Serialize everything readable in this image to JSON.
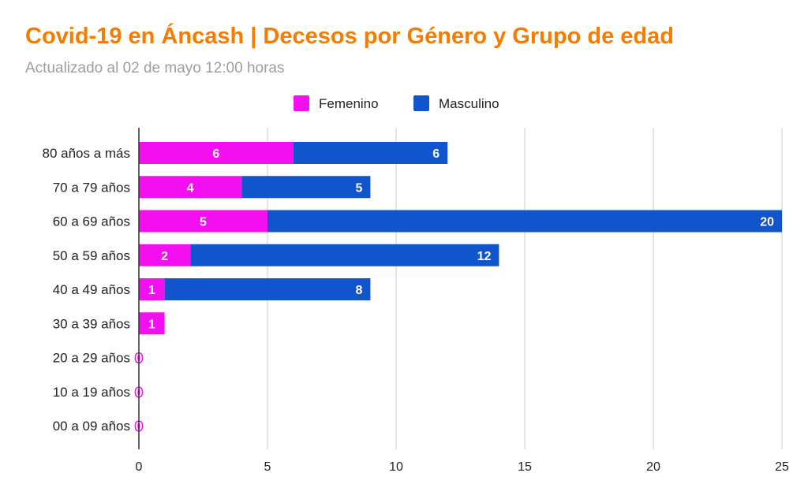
{
  "chart_data": {
    "type": "bar",
    "orientation": "horizontal",
    "stacked": true,
    "title": "Covid-19 en Áncash | Decesos por Género y Grupo de edad",
    "subtitle": "Actualizado al 02 de mayo 12:00 horas",
    "xlabel": "",
    "ylabel": "",
    "xlim": [
      0,
      25
    ],
    "xticks": [
      0,
      5,
      10,
      15,
      20,
      25
    ],
    "grid": true,
    "legend_position": "top",
    "categories": [
      "80 años a más",
      "70 a 79 años",
      "60 a 69 años",
      "50 a 59 años",
      "40 a 49 años",
      "30 a 39 años",
      "20 a 29 años",
      "10 a 19 años",
      "00 a 09 años"
    ],
    "series": [
      {
        "name": "Femenino",
        "color": "#f30ff0",
        "values": [
          6,
          4,
          5,
          2,
          1,
          1,
          0,
          0,
          0
        ]
      },
      {
        "name": "Masculino",
        "color": "#1155cc",
        "values": [
          6,
          5,
          20,
          12,
          8,
          0,
          0,
          0,
          0
        ]
      }
    ]
  }
}
